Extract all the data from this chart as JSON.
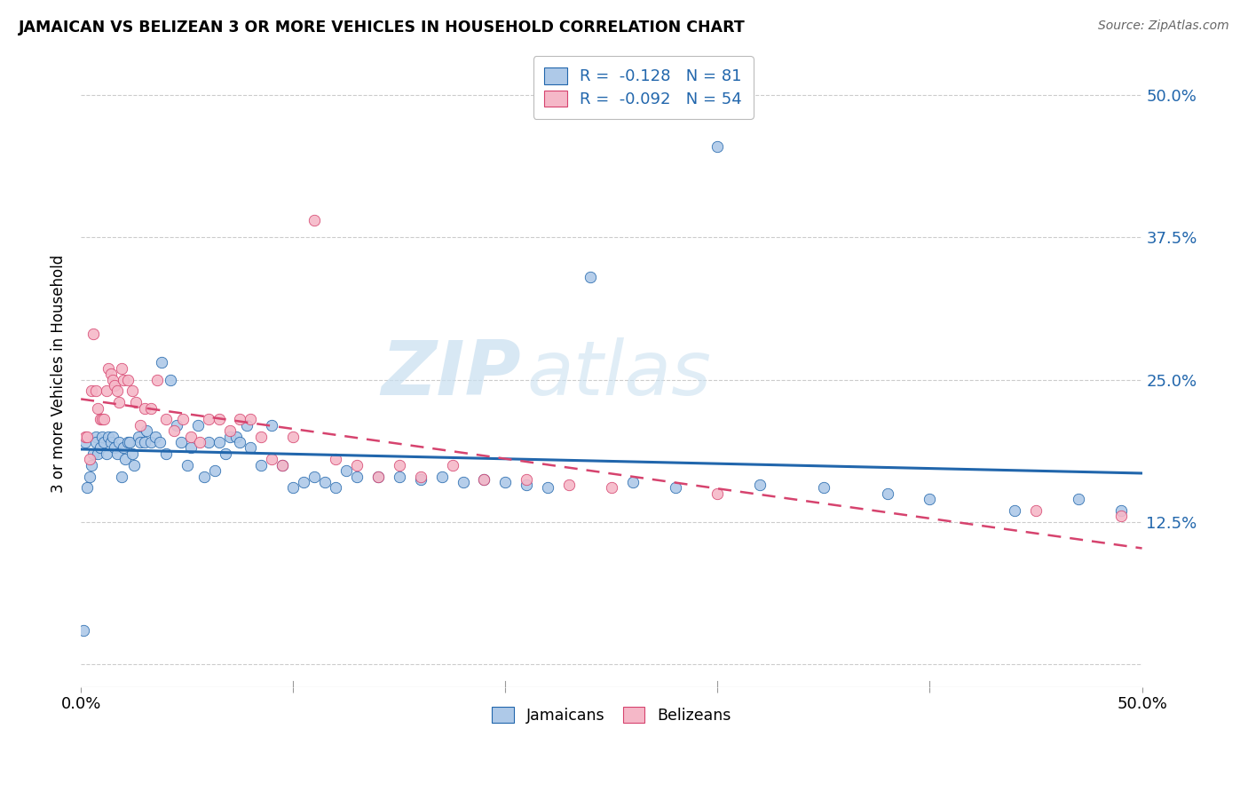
{
  "title": "JAMAICAN VS BELIZEAN 3 OR MORE VEHICLES IN HOUSEHOLD CORRELATION CHART",
  "source": "Source: ZipAtlas.com",
  "ylabel": "3 or more Vehicles in Household",
  "xlim": [
    0.0,
    0.5
  ],
  "ylim": [
    -0.02,
    0.53
  ],
  "yticks": [
    0.0,
    0.125,
    0.25,
    0.375,
    0.5
  ],
  "ytick_labels": [
    "",
    "12.5%",
    "25.0%",
    "37.5%",
    "50.0%"
  ],
  "jamaicans_color": "#aec9e8",
  "belizeans_color": "#f5b8c8",
  "trendline_jamaicans_color": "#2166ac",
  "trendline_belizeans_color": "#d6436e",
  "r_jamaicans": -0.128,
  "n_jamaicans": 81,
  "r_belizeans": -0.092,
  "n_belizeans": 54,
  "watermark_zip": "ZIP",
  "watermark_atlas": "atlas",
  "jamaicans_x": [
    0.001,
    0.002,
    0.003,
    0.004,
    0.005,
    0.006,
    0.007,
    0.007,
    0.008,
    0.009,
    0.01,
    0.011,
    0.012,
    0.013,
    0.014,
    0.015,
    0.016,
    0.017,
    0.018,
    0.019,
    0.02,
    0.021,
    0.022,
    0.023,
    0.024,
    0.025,
    0.027,
    0.028,
    0.03,
    0.031,
    0.033,
    0.035,
    0.037,
    0.038,
    0.04,
    0.042,
    0.045,
    0.047,
    0.05,
    0.052,
    0.055,
    0.058,
    0.06,
    0.063,
    0.065,
    0.068,
    0.07,
    0.073,
    0.075,
    0.078,
    0.08,
    0.085,
    0.09,
    0.095,
    0.1,
    0.105,
    0.11,
    0.115,
    0.12,
    0.125,
    0.13,
    0.14,
    0.15,
    0.16,
    0.17,
    0.18,
    0.19,
    0.2,
    0.21,
    0.22,
    0.24,
    0.26,
    0.28,
    0.3,
    0.32,
    0.35,
    0.38,
    0.4,
    0.44,
    0.47,
    0.49
  ],
  "jamaicans_y": [
    0.03,
    0.195,
    0.155,
    0.165,
    0.175,
    0.185,
    0.2,
    0.195,
    0.185,
    0.19,
    0.2,
    0.195,
    0.185,
    0.2,
    0.195,
    0.2,
    0.19,
    0.185,
    0.195,
    0.165,
    0.19,
    0.18,
    0.195,
    0.195,
    0.185,
    0.175,
    0.2,
    0.195,
    0.195,
    0.205,
    0.195,
    0.2,
    0.195,
    0.265,
    0.185,
    0.25,
    0.21,
    0.195,
    0.175,
    0.19,
    0.21,
    0.165,
    0.195,
    0.17,
    0.195,
    0.185,
    0.2,
    0.2,
    0.195,
    0.21,
    0.19,
    0.175,
    0.21,
    0.175,
    0.155,
    0.16,
    0.165,
    0.16,
    0.155,
    0.17,
    0.165,
    0.165,
    0.165,
    0.162,
    0.165,
    0.16,
    0.162,
    0.16,
    0.158,
    0.155,
    0.34,
    0.16,
    0.155,
    0.455,
    0.158,
    0.155,
    0.15,
    0.145,
    0.135,
    0.145,
    0.135
  ],
  "belizeans_x": [
    0.002,
    0.003,
    0.004,
    0.005,
    0.006,
    0.007,
    0.008,
    0.009,
    0.01,
    0.011,
    0.012,
    0.013,
    0.014,
    0.015,
    0.016,
    0.017,
    0.018,
    0.019,
    0.02,
    0.022,
    0.024,
    0.026,
    0.028,
    0.03,
    0.033,
    0.036,
    0.04,
    0.044,
    0.048,
    0.052,
    0.056,
    0.06,
    0.065,
    0.07,
    0.075,
    0.08,
    0.085,
    0.09,
    0.095,
    0.1,
    0.11,
    0.12,
    0.13,
    0.14,
    0.15,
    0.16,
    0.175,
    0.19,
    0.21,
    0.23,
    0.25,
    0.3,
    0.45,
    0.49
  ],
  "belizeans_y": [
    0.2,
    0.2,
    0.18,
    0.24,
    0.29,
    0.24,
    0.225,
    0.215,
    0.215,
    0.215,
    0.24,
    0.26,
    0.255,
    0.25,
    0.245,
    0.24,
    0.23,
    0.26,
    0.25,
    0.25,
    0.24,
    0.23,
    0.21,
    0.225,
    0.225,
    0.25,
    0.215,
    0.205,
    0.215,
    0.2,
    0.195,
    0.215,
    0.215,
    0.205,
    0.215,
    0.215,
    0.2,
    0.18,
    0.175,
    0.2,
    0.39,
    0.18,
    0.175,
    0.165,
    0.175,
    0.165,
    0.175,
    0.162,
    0.162,
    0.158,
    0.155,
    0.15,
    0.135,
    0.13
  ],
  "trendline_j_start": 0.21,
  "trendline_j_end": 0.13,
  "trendline_b_start": 0.235,
  "trendline_b_end": 0.15
}
